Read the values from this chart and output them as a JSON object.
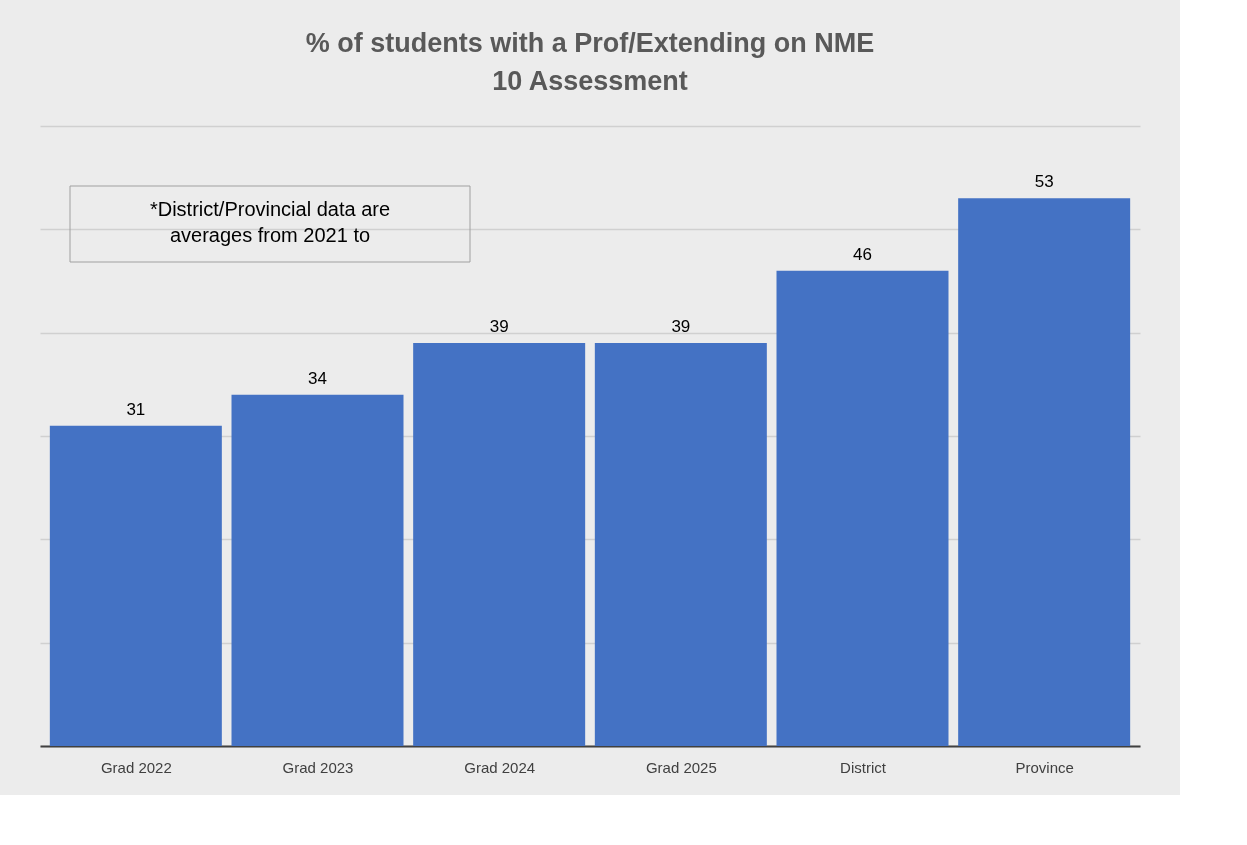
{
  "chart_data": {
    "type": "bar",
    "title": "% of students with a Prof/Extending on NME 10 Assessment",
    "categories": [
      "Grad 2022",
      "Grad 2023",
      "Grad 2024",
      "Grad 2025",
      "District",
      "Province"
    ],
    "values": [
      31,
      34,
      39,
      39,
      46,
      53
    ],
    "color": "#4472c4",
    "ylim": [
      0,
      60
    ],
    "yticks": [
      {
        "value": 0,
        "label": null
      },
      {
        "value": 10,
        "label": null
      },
      {
        "value": 20,
        "label": null
      },
      {
        "value": 30,
        "label": null
      },
      {
        "value": 40,
        "label": null
      },
      {
        "value": 50,
        "label": null
      },
      {
        "value": 60,
        "label": null
      }
    ],
    "grid": "y",
    "tick_labels": "x",
    "data_labels": true,
    "annotations": [
      "*District/Provincial data are averages from 2021 to"
    ]
  }
}
